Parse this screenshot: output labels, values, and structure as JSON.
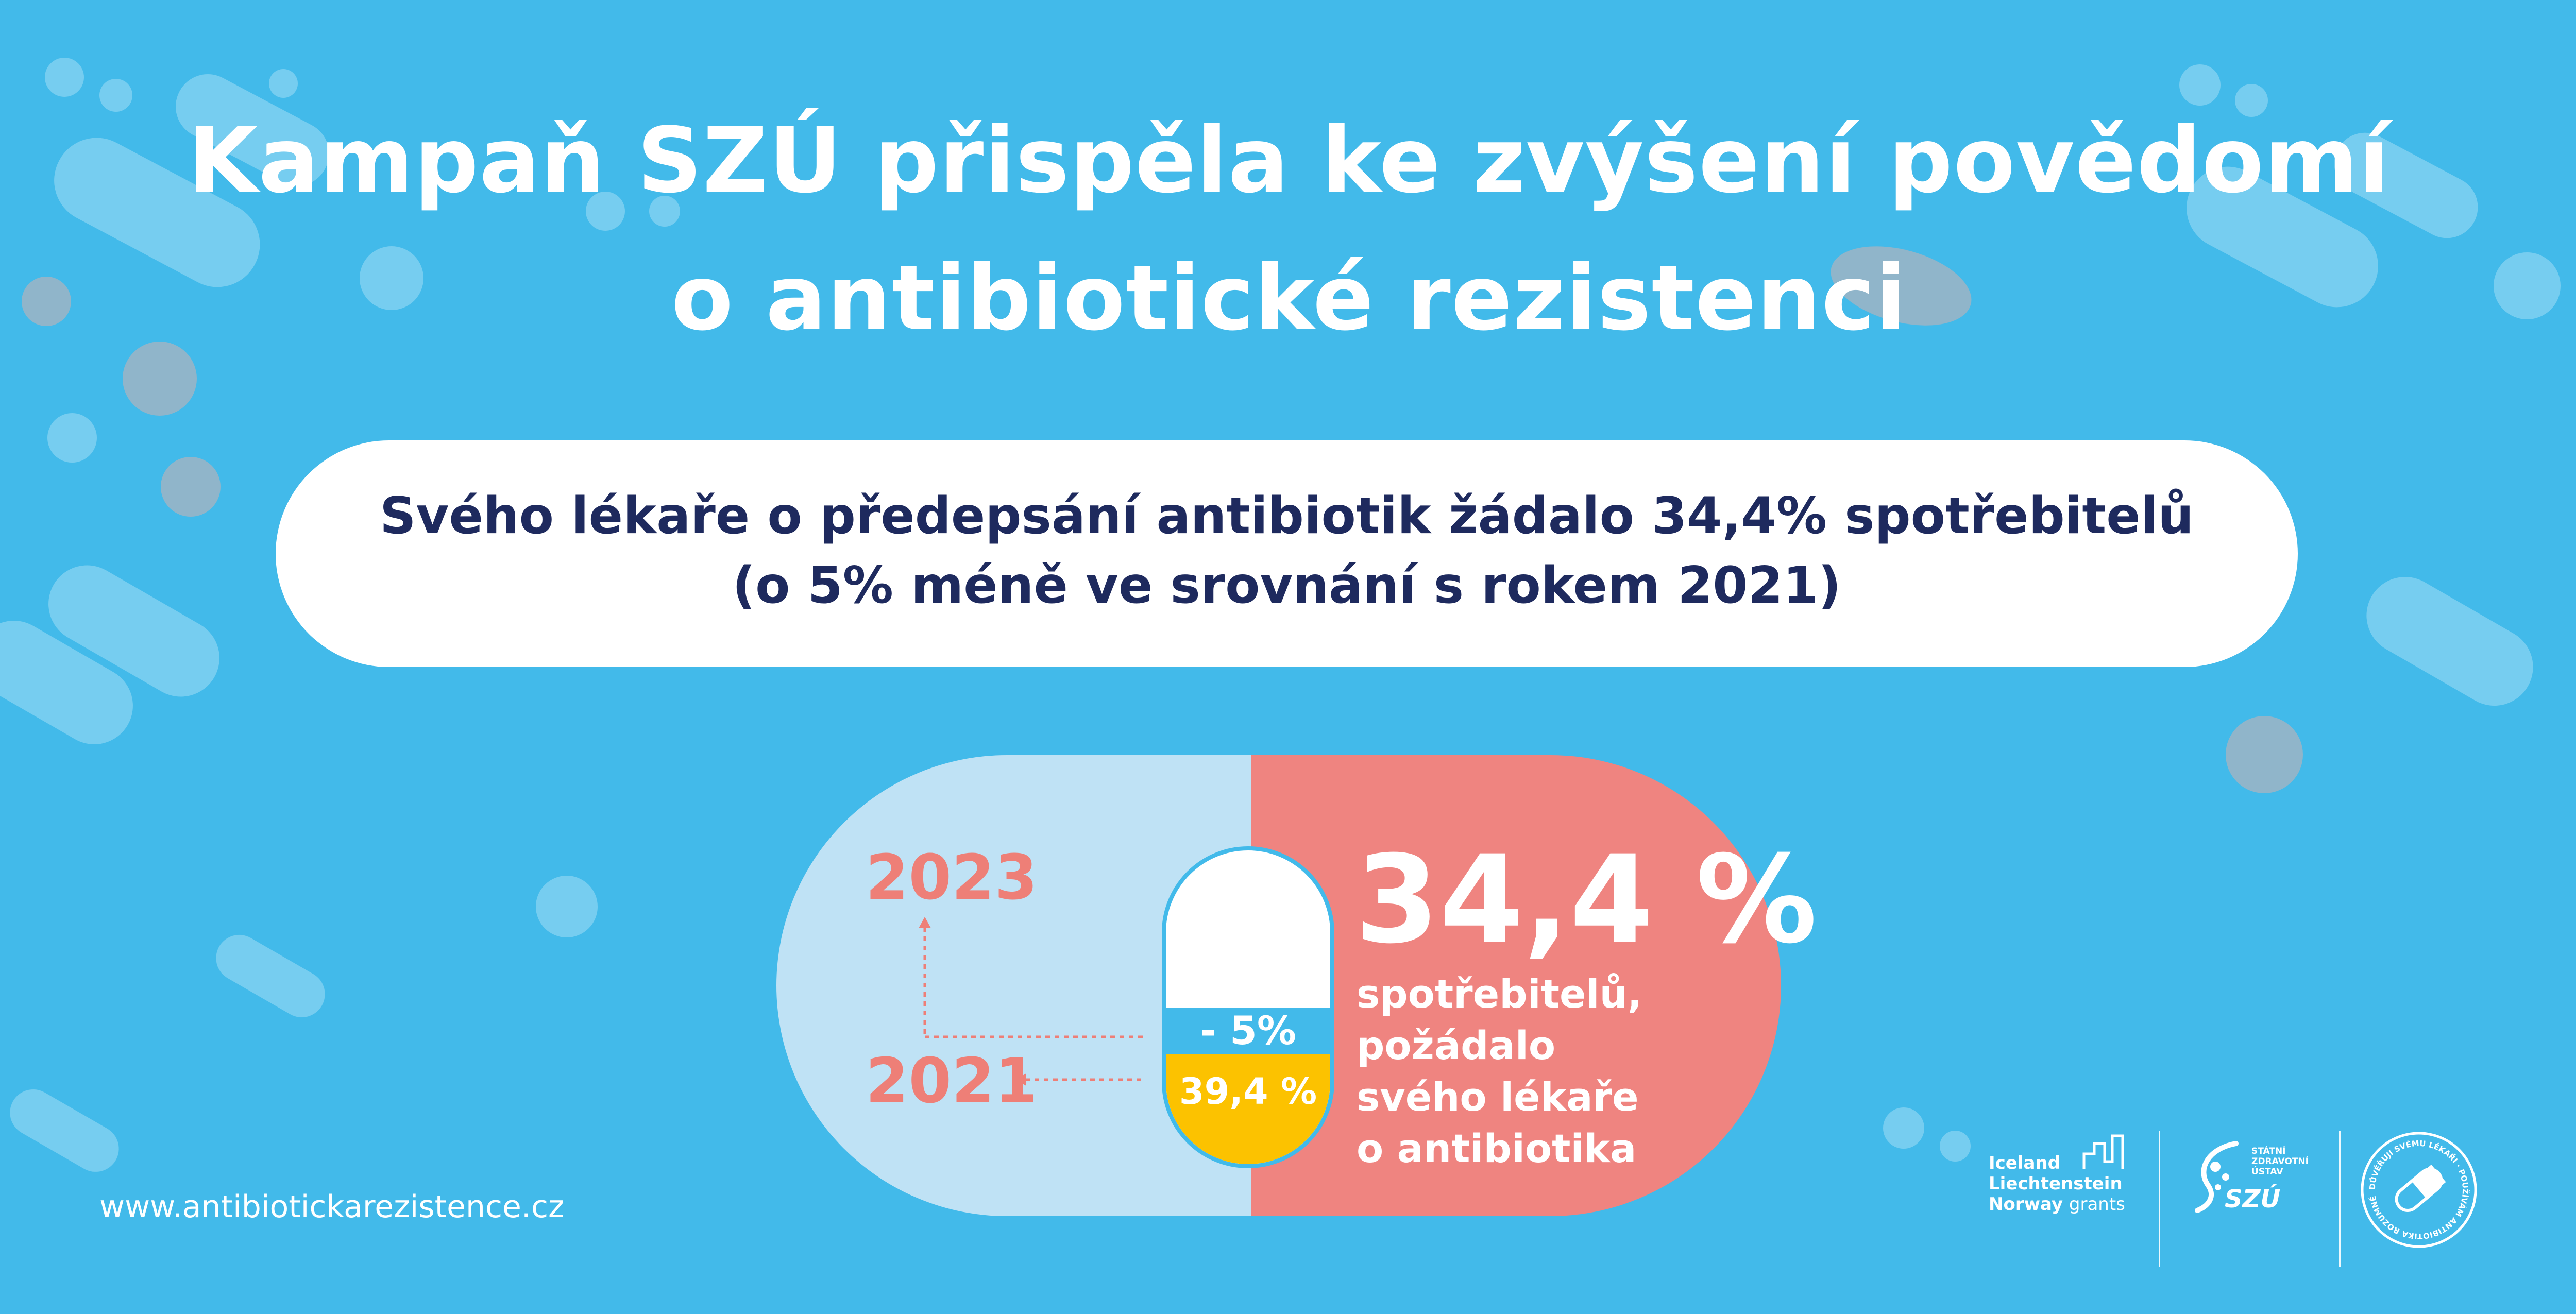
{
  "title": {
    "line1": "Kampaň SZÚ přispěla ke zvýšení povědomí",
    "line2": "o antibiotické rezistenci"
  },
  "banner": {
    "line1": "Svého lékaře o předepsání antibiotik žádalo 34,4% spotřebitelů",
    "line2": "(o 5% méně ve srovnání s rokem 2021)"
  },
  "infographic": {
    "year_current": "2023",
    "year_previous": "2021",
    "pill_change": "- 5%",
    "pill_previous_value": "39,4 %",
    "big_value": "34,4 %",
    "desc": [
      "spotřebitelů,",
      "požádalo",
      "svého lékaře",
      "o antibiotika"
    ],
    "change_fraction": 0.05,
    "previous_fraction": 0.394
  },
  "footer": {
    "url": "www.antibiotickarezistence.cz",
    "grants": [
      "Iceland",
      "Liechtenstein",
      "Norway"
    ],
    "grants_suffix": "grants",
    "szu_text": "SZÚ",
    "szu_small": [
      "STÁTNÍ",
      "ZDRAVOTNÍ",
      "ÚSTAV"
    ],
    "badge_text": "DŮVĚŘUJI SVÉMU LÉKAŘI · POUŽÍVÁM ANTIBIOTIKA ROZUMNĚ"
  },
  "colors": {
    "background": "#42baea",
    "navy": "#1e2a5e",
    "salmon": "#ef8480",
    "light_blue": "#bfe2f5",
    "yellow": "#fcc200",
    "year_color": "#ee7f77"
  }
}
